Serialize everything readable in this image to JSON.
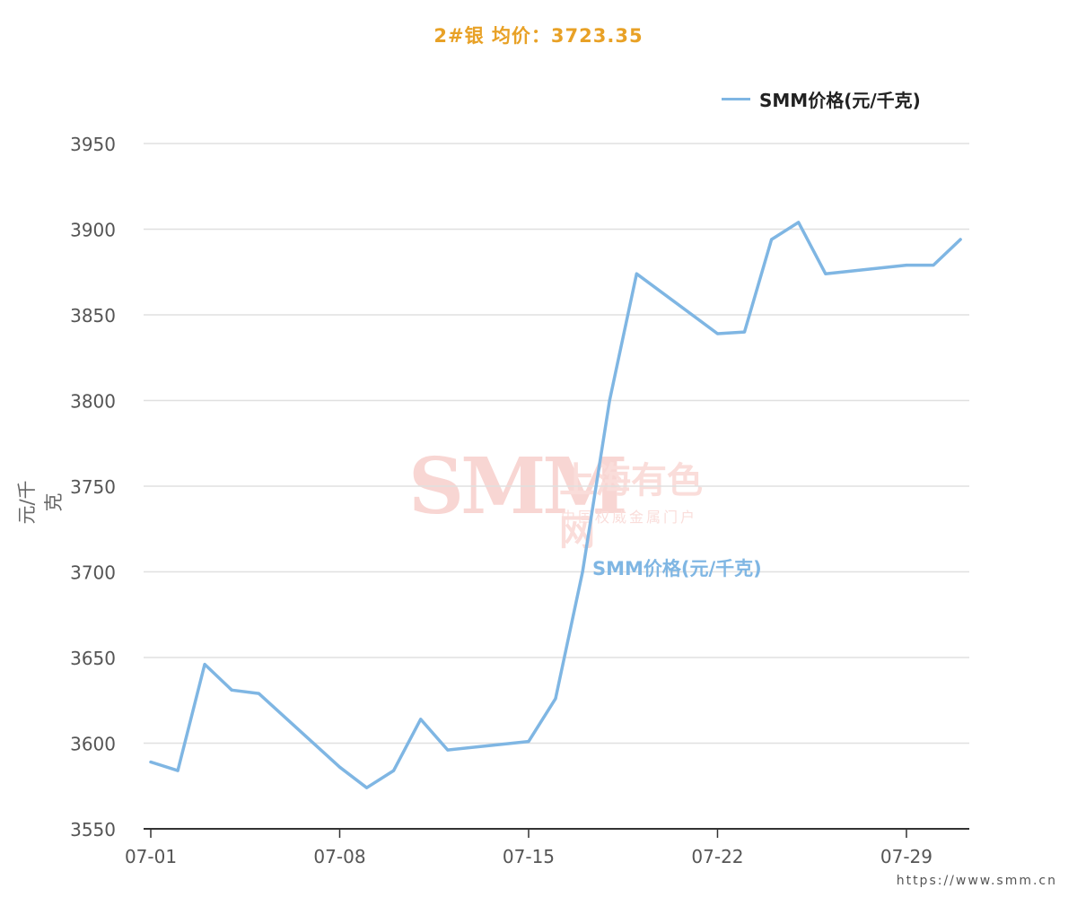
{
  "title": "2#银 均价：3723.35",
  "footer_url": "https://www.smm.cn",
  "watermark": {
    "logo": "SMM",
    "name": "上海有色网",
    "tagline": "中国权威金属门户"
  },
  "colors": {
    "title": "#e8a126",
    "series": "#7fb6e3",
    "grid": "#e0e0e0",
    "axis": "#333333"
  },
  "chart_data": {
    "type": "line",
    "title": "2#银 均价：3723.35",
    "xlabel": "",
    "ylabel": "元/千克",
    "ylim": [
      3550,
      3950
    ],
    "yticks": [
      3550,
      3600,
      3650,
      3700,
      3750,
      3800,
      3850,
      3900,
      3950
    ],
    "xticks": [
      "07-01",
      "07-08",
      "07-15",
      "07-22",
      "07-29"
    ],
    "xlim_days": [
      1,
      31
    ],
    "grid": true,
    "legend_position": "top-right",
    "series": [
      {
        "name": "SMM价格(元/千克)",
        "annotation": "SMM价格(元/千克)",
        "color": "#7fb6e3",
        "x": [
          "07-01",
          "07-02",
          "07-03",
          "07-04",
          "07-05",
          "07-08",
          "07-09",
          "07-10",
          "07-11",
          "07-12",
          "07-15",
          "07-16",
          "07-17",
          "07-18",
          "07-19",
          "07-22",
          "07-23",
          "07-24",
          "07-25",
          "07-26",
          "07-29",
          "07-30",
          "07-31"
        ],
        "values": [
          3589,
          3584,
          3646,
          3631,
          3629,
          3586,
          3574,
          3584,
          3614,
          3596,
          3601,
          3626,
          3700,
          3800,
          3874,
          3839,
          3840,
          3894,
          3904,
          3874,
          3879,
          3879,
          3894
        ]
      }
    ]
  }
}
